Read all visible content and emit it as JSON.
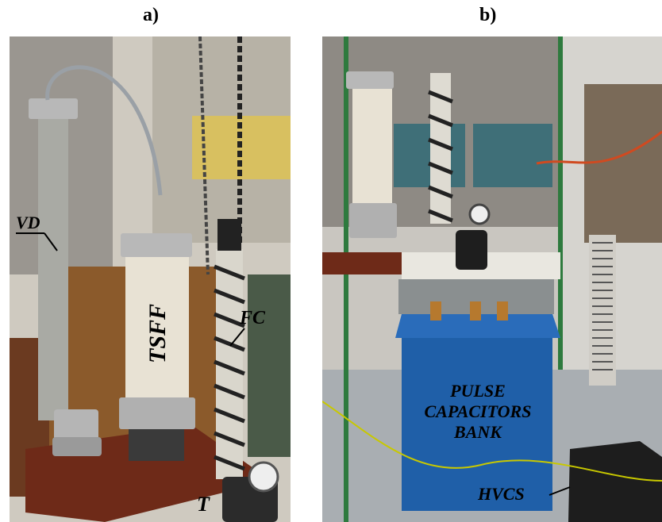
{
  "panels": {
    "a": {
      "label": "a)",
      "annotations": {
        "vd": "VD",
        "tsff": "TSFF",
        "fc": "FC",
        "t": "T"
      }
    },
    "b": {
      "label": "b)",
      "annotations": {
        "bank_line1": "PULSE",
        "bank_line2": "CAPACITORS",
        "bank_line3": "BANK",
        "hvcs": "HVCS"
      }
    }
  },
  "colors": {
    "capacitor_bank": "#1f5fa8",
    "table_top": "#6e2a18",
    "cylinder_metal": "#b8b8b8",
    "cylinder_body": "#e8e2d4"
  }
}
